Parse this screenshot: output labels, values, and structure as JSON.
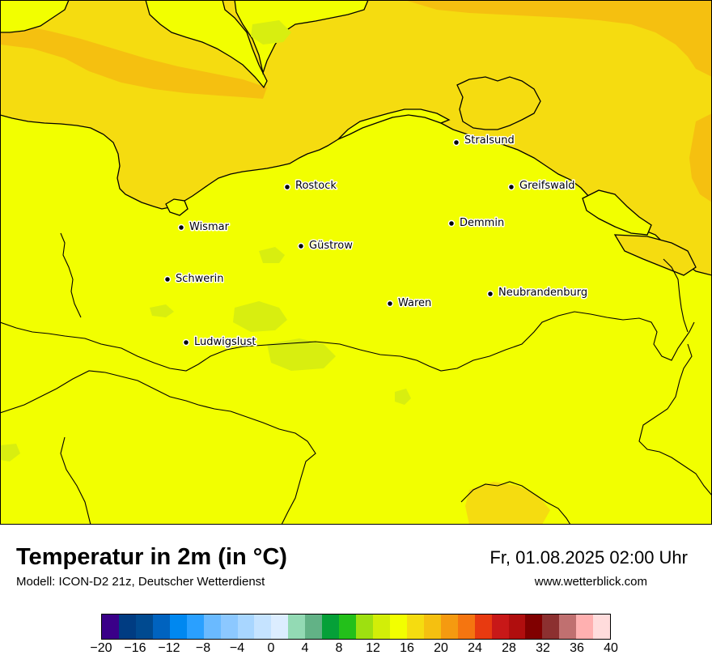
{
  "map": {
    "cities": [
      {
        "name": "Stralsund"
      },
      {
        "name": "Rostock"
      },
      {
        "name": "Greifswald"
      },
      {
        "name": "Wismar"
      },
      {
        "name": "Demmin"
      },
      {
        "name": "Güstrow"
      },
      {
        "name": "Schwerin"
      },
      {
        "name": "Neubrandenburg"
      },
      {
        "name": "Waren"
      },
      {
        "name": "Ludwigslust"
      }
    ],
    "colors": {
      "land": "#f2ff00",
      "sea_warm": "#f5dc10",
      "sea_warmer": "#f5c010",
      "cool_patch": "#d8ee10",
      "boundary": "#000000"
    }
  },
  "header": {
    "title": "Temperatur in 2m (in °C)",
    "subtitle": "Modell: ICON-D2 21z, Deutscher Wetterdienst",
    "datetime": "Fr, 01.08.2025 02:00 Uhr",
    "website": "www.wetterblick.com"
  },
  "legend": {
    "ticks": [
      "−20",
      "−16",
      "−12",
      "−8",
      "−4",
      "0",
      "4",
      "8",
      "12",
      "16",
      "20",
      "24",
      "28",
      "32",
      "36",
      "40"
    ],
    "colors": [
      "#3a0088",
      "#003c82",
      "#004a90",
      "#0063bf",
      "#0088f0",
      "#2aa0ff",
      "#6abaff",
      "#8cc8ff",
      "#a8d6ff",
      "#c5e3ff",
      "#dcedff",
      "#93dab4",
      "#62b286",
      "#05a038",
      "#23c01a",
      "#9ee010",
      "#d2ee08",
      "#f2ff00",
      "#f5dc10",
      "#f5c010",
      "#f59a10",
      "#f57510",
      "#e83a10",
      "#c81818",
      "#b00e0e",
      "#800000",
      "#8c3030",
      "#c07070",
      "#ffb0b0",
      "#ffdcdc"
    ]
  }
}
